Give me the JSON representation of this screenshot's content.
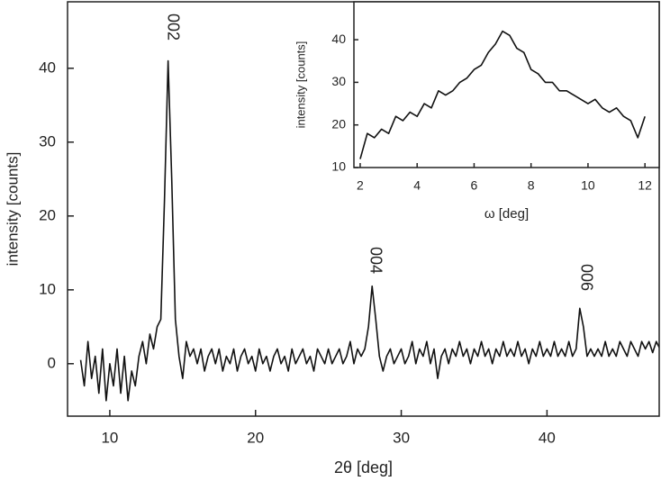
{
  "chart_data": [
    {
      "type": "line",
      "xlabel": "2θ [deg]",
      "ylabel": "intensity  [counts]",
      "annotations": [
        "002",
        "004",
        "006"
      ],
      "color": "#111111",
      "xlim": [
        7.1,
        47.7
      ],
      "ylim": [
        -7.1,
        49
      ],
      "xticks": [
        10,
        20,
        30,
        40
      ],
      "yticks": [
        0,
        10,
        20,
        30,
        40
      ],
      "x": [
        8,
        8.25,
        8.5,
        8.75,
        9,
        9.25,
        9.5,
        9.75,
        10,
        10.25,
        10.5,
        10.75,
        11,
        11.25,
        11.5,
        11.75,
        12,
        12.25,
        12.5,
        12.75,
        13,
        13.25,
        13.5,
        13.75,
        14,
        14.25,
        14.5,
        14.75,
        15,
        15.25,
        15.5,
        15.75,
        16,
        16.25,
        16.5,
        16.75,
        17,
        17.25,
        17.5,
        17.75,
        18,
        18.25,
        18.5,
        18.75,
        19,
        19.25,
        19.5,
        19.75,
        20,
        20.25,
        20.5,
        20.75,
        21,
        21.25,
        21.5,
        21.75,
        22,
        22.25,
        22.5,
        22.75,
        23,
        23.25,
        23.5,
        23.75,
        24,
        24.25,
        24.5,
        24.75,
        25,
        25.25,
        25.5,
        25.75,
        26,
        26.25,
        26.5,
        26.75,
        27,
        27.25,
        27.5,
        27.75,
        28,
        28.25,
        28.5,
        28.75,
        29,
        29.25,
        29.5,
        29.75,
        30,
        30.25,
        30.5,
        30.75,
        31,
        31.25,
        31.5,
        31.75,
        32,
        32.25,
        32.5,
        32.75,
        33,
        33.25,
        33.5,
        33.75,
        34,
        34.25,
        34.5,
        34.75,
        35,
        35.25,
        35.5,
        35.75,
        36,
        36.25,
        36.5,
        36.75,
        37,
        37.25,
        37.5,
        37.75,
        38,
        38.25,
        38.5,
        38.75,
        39,
        39.25,
        39.5,
        39.75,
        40,
        40.25,
        40.5,
        40.75,
        41,
        41.25,
        41.5,
        41.75,
        42,
        42.25,
        42.5,
        42.75,
        43,
        43.25,
        43.5,
        43.75,
        44,
        44.25,
        44.5,
        44.75,
        45,
        45.25,
        45.5,
        45.75,
        46,
        46.25,
        46.5,
        46.75,
        47,
        47.25,
        47.5,
        47.75
      ],
      "values": [
        0.5,
        -3,
        3,
        -2,
        1,
        -4,
        2,
        -5,
        0,
        -3,
        2,
        -4,
        1,
        -5,
        -1,
        -3,
        1,
        3,
        0,
        4,
        2,
        5,
        6,
        22,
        41,
        25,
        6,
        1,
        -2,
        3,
        1,
        2,
        0,
        2,
        -1,
        1,
        2,
        0,
        2,
        -1,
        1,
        0,
        2,
        -1,
        1,
        2,
        0,
        1,
        -1,
        2,
        0,
        1,
        -1,
        1,
        2,
        0,
        1,
        -1,
        2,
        0,
        1,
        2,
        0,
        1,
        -1,
        2,
        1,
        0,
        2,
        0,
        1,
        2,
        0,
        1,
        3,
        0,
        2,
        1,
        2,
        5,
        10.5,
        6,
        1,
        -1,
        1,
        2,
        0,
        1,
        2,
        0,
        1,
        3,
        0,
        2,
        1,
        3,
        0,
        2,
        -2,
        1,
        2,
        0,
        2,
        1,
        3,
        1,
        2,
        0,
        2,
        1,
        3,
        1,
        2,
        0,
        2,
        1,
        3,
        1,
        2,
        1,
        3,
        1,
        2,
        0,
        2,
        1,
        3,
        1,
        2,
        1,
        3,
        1,
        2,
        1,
        3,
        1,
        2,
        7.5,
        5,
        1,
        2,
        1,
        2,
        1,
        3,
        1,
        2,
        1,
        3,
        2,
        1,
        3,
        2,
        1,
        3,
        2,
        3,
        1.5,
        3,
        2
      ]
    },
    {
      "type": "line",
      "xlabel": "ω  [deg]",
      "ylabel": "intensity  [counts]",
      "color": "#111111",
      "xlim": [
        1.78,
        12.5
      ],
      "ylim": [
        10,
        48.9
      ],
      "xticks": [
        2,
        4,
        6,
        8,
        10,
        12
      ],
      "yticks": [
        10,
        20,
        30,
        40
      ],
      "x": [
        2,
        2.25,
        2.5,
        2.75,
        3,
        3.25,
        3.5,
        3.75,
        4,
        4.25,
        4.5,
        4.75,
        5,
        5.25,
        5.5,
        5.75,
        6,
        6.25,
        6.5,
        6.75,
        7,
        7.25,
        7.5,
        7.75,
        8,
        8.25,
        8.5,
        8.75,
        9,
        9.25,
        9.5,
        9.75,
        10,
        10.25,
        10.5,
        10.75,
        11,
        11.25,
        11.5,
        11.75,
        12
      ],
      "values": [
        12,
        18,
        17,
        19,
        18,
        22,
        21,
        23,
        22,
        25,
        24,
        28,
        27,
        28,
        30,
        31,
        33,
        34,
        37,
        39,
        42,
        41,
        38,
        37,
        33,
        32,
        30,
        30,
        28,
        28,
        27,
        26,
        25,
        26,
        24,
        23,
        24,
        22,
        21,
        17,
        22
      ]
    }
  ]
}
